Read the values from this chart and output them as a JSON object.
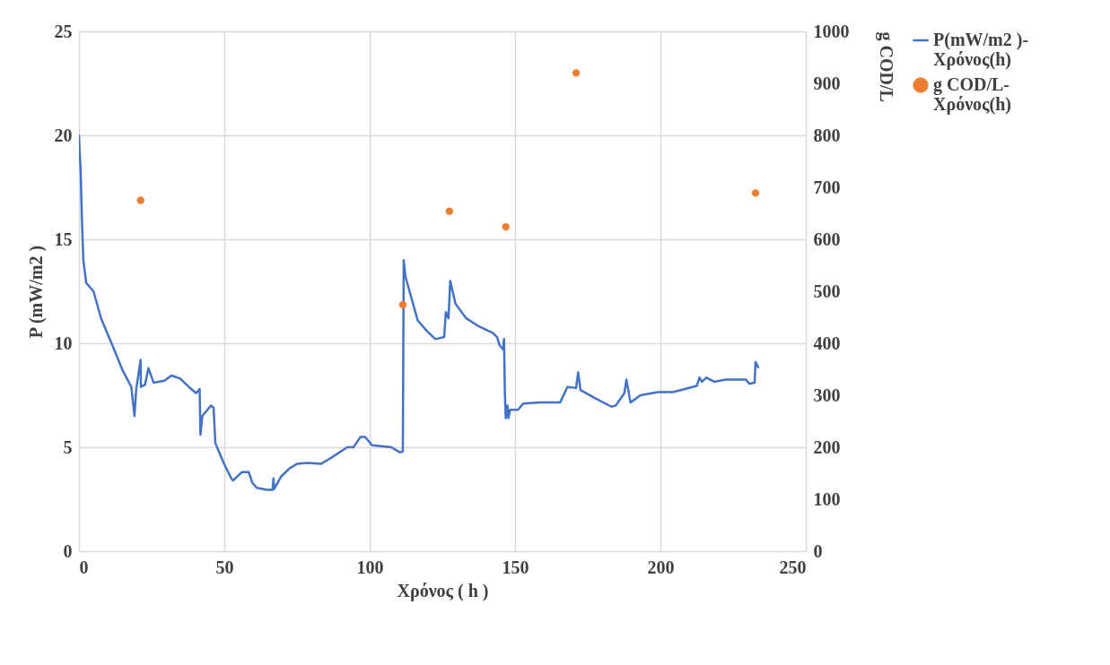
{
  "chart_data": {
    "type": "line",
    "xlabel": "Χρόνος ( h )",
    "ylabel": "P (mW/m2 )",
    "y2label": "g COD/L",
    "xlim": [
      0,
      250
    ],
    "xticks": [
      0,
      50,
      100,
      150,
      200,
      250
    ],
    "ylim": [
      0,
      25
    ],
    "yticks": [
      0,
      5,
      10,
      15,
      20,
      25
    ],
    "y2lim": [
      0,
      1000
    ],
    "y2ticks": [
      0,
      100,
      200,
      300,
      400,
      500,
      600,
      700,
      800,
      900,
      1000
    ],
    "grid": true,
    "legend": "right",
    "series": [
      {
        "name": "P(mW/m2 )-Χρόνος(h)",
        "color": "#4472c4",
        "x": [
          0,
          0.6,
          1,
          1.5,
          2.5,
          5,
          7.6,
          11.5,
          15,
          18,
          19.1,
          19.7,
          21.2,
          21.3,
          22.7,
          23.9,
          25.7,
          29.4,
          31.8,
          34.8,
          37.8,
          40.3,
          41.5,
          41.8,
          42.4,
          45.4,
          46.3,
          46.9,
          49.9,
          52.4,
          53,
          56,
          58.4,
          59.6,
          61.1,
          64.5,
          66.6,
          66.9,
          67.2,
          69.6,
          72.6,
          75,
          78.7,
          83.2,
          86.3,
          92.3,
          94.4,
          96.9,
          98.4,
          100.8,
          107.4,
          110.5,
          111.4,
          111.7,
          112.3,
          113.5,
          116.5,
          119.6,
          122.6,
          125.6,
          126.2,
          127.1,
          127.7,
          129.5,
          133.2,
          137.7,
          142.3,
          143.8,
          144.7,
          145.9,
          146.2,
          146.5,
          146.8,
          147.4,
          147.7,
          148.3,
          151,
          152.8,
          158.9,
          165.5,
          168,
          171,
          171.7,
          172.5,
          177,
          183.1,
          184.6,
          187.6,
          188.3,
          189.7,
          193.1,
          199.2,
          204.3,
          212.5,
          213.4,
          214.3,
          215.8,
          218.5,
          222.5,
          229.4,
          230.6,
          232.4,
          232.7,
          233.6
        ],
        "values": [
          20,
          18.2,
          16,
          14,
          12.9,
          12.5,
          11.2,
          9.9,
          8.7,
          7.9,
          6.5,
          7.8,
          9.2,
          7.9,
          8.0,
          8.8,
          8.1,
          8.2,
          8.45,
          8.3,
          7.9,
          7.6,
          7.8,
          5.6,
          6.5,
          7.0,
          6.9,
          5.2,
          4.2,
          3.5,
          3.4,
          3.8,
          3.8,
          3.3,
          3.05,
          2.95,
          2.95,
          3.5,
          3.0,
          3.6,
          4.0,
          4.2,
          4.25,
          4.2,
          4.45,
          5.0,
          5.0,
          5.5,
          5.5,
          5.1,
          5.0,
          4.75,
          4.8,
          14.0,
          13.2,
          12.6,
          11.1,
          10.6,
          10.2,
          10.3,
          11.5,
          11.2,
          13.0,
          11.9,
          11.2,
          10.8,
          10.5,
          10.3,
          9.9,
          9.7,
          10.2,
          7.6,
          6.4,
          7.0,
          6.4,
          6.8,
          6.8,
          7.1,
          7.15,
          7.15,
          7.9,
          7.85,
          8.6,
          7.75,
          7.4,
          6.95,
          7.0,
          7.6,
          8.25,
          7.15,
          7.5,
          7.65,
          7.65,
          7.95,
          8.35,
          8.15,
          8.35,
          8.15,
          8.25,
          8.25,
          8.05,
          8.1,
          9.1,
          8.85
        ]
      },
      {
        "name": "g COD/L-Χρόνος(h)",
        "type": "scatter",
        "axis": "y2",
        "color": "#ed7d31",
        "x": [
          21.2,
          111.4,
          127.4,
          146.8,
          171,
          232.7
        ],
        "values": [
          675,
          474,
          654,
          624,
          920,
          689
        ]
      }
    ]
  }
}
